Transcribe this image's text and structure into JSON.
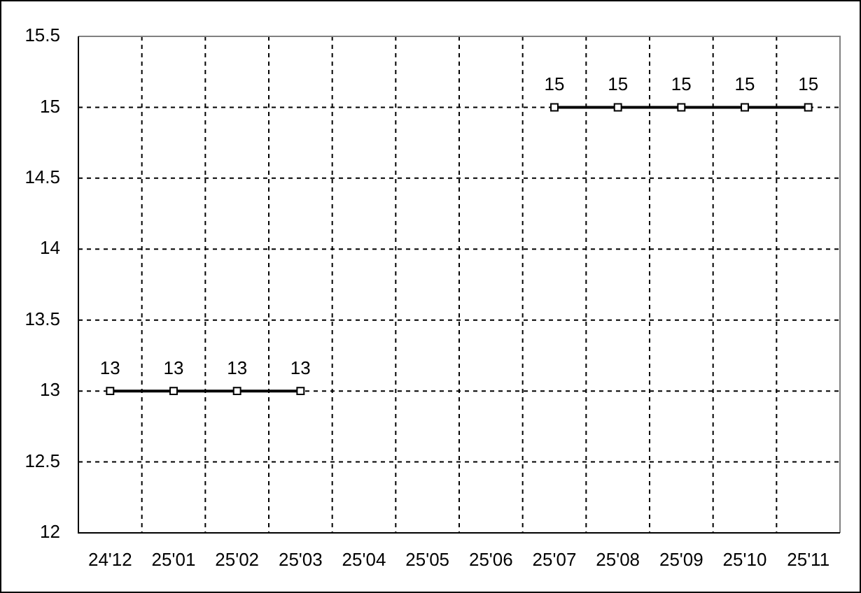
{
  "chart_data": {
    "type": "line",
    "categories": [
      "24'12",
      "25'01",
      "25'02",
      "25'03",
      "25'04",
      "25'05",
      "25'06",
      "25'07",
      "25'08",
      "25'09",
      "25'10",
      "25'11"
    ],
    "values": [
      13,
      13,
      13,
      13,
      null,
      null,
      null,
      15,
      15,
      15,
      15,
      15
    ],
    "color": "#000000",
    "ylim": [
      12,
      15.5
    ],
    "yticks": [
      12,
      12.5,
      13,
      13.5,
      14,
      14.5,
      15,
      15.5
    ],
    "grid": true,
    "marker": "square",
    "line_style": "solid",
    "data_labels": true
  }
}
